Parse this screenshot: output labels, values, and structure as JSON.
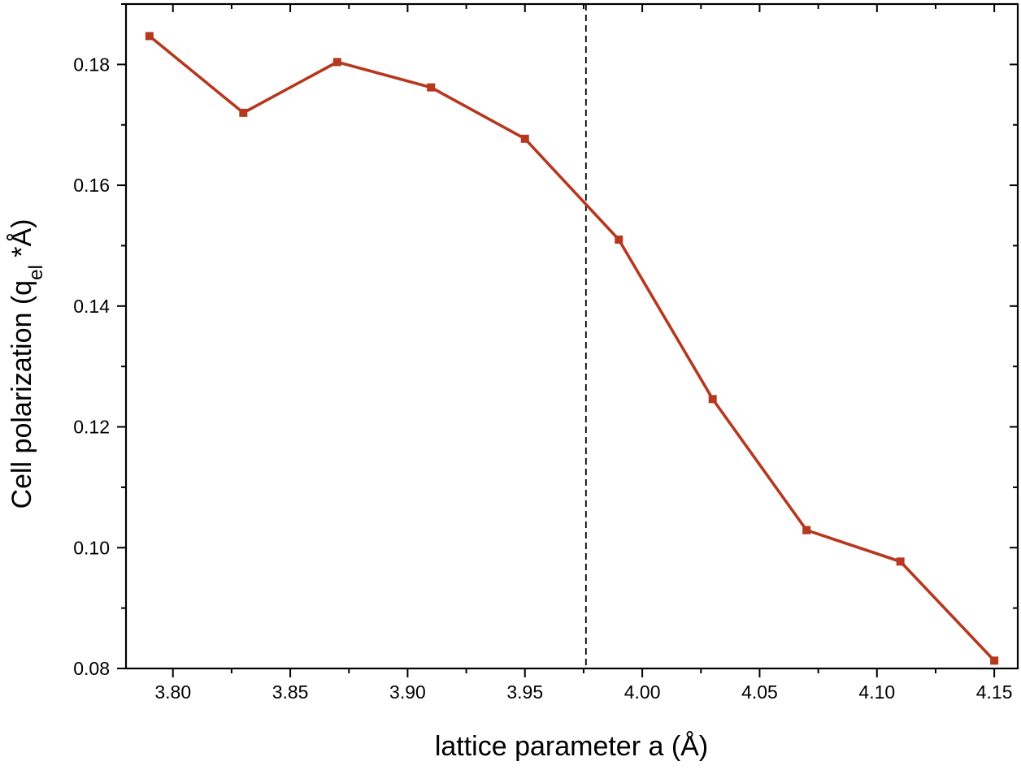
{
  "chart_data": {
    "type": "line",
    "x": [
      3.79,
      3.83,
      3.87,
      3.91,
      3.95,
      3.99,
      4.03,
      4.07,
      4.11,
      4.15
    ],
    "series": [
      {
        "values": [
          0.1847,
          0.172,
          0.1804,
          0.1762,
          0.1677,
          0.151,
          0.1246,
          0.1029,
          0.0977,
          0.0813
        ],
        "color": "#b5381f",
        "marker": "square"
      }
    ],
    "xlabel": "lattice parameter a  (Å)",
    "ylabel_parts": {
      "main": "Cell polarization (q",
      "sub": "el",
      "tail": " *Å)"
    },
    "xlim": [
      3.78,
      4.16
    ],
    "ylim": [
      0.08,
      0.19
    ],
    "xticks": [
      "3.80",
      "3.85",
      "3.90",
      "3.95",
      "4.00",
      "4.05",
      "4.10",
      "4.15"
    ],
    "yticks": [
      "0.08",
      "0.10",
      "0.12",
      "0.14",
      "0.16",
      "0.18"
    ],
    "reference_line": {
      "x": 3.976,
      "style": "dashed",
      "color": "#000000"
    },
    "grid": false
  }
}
